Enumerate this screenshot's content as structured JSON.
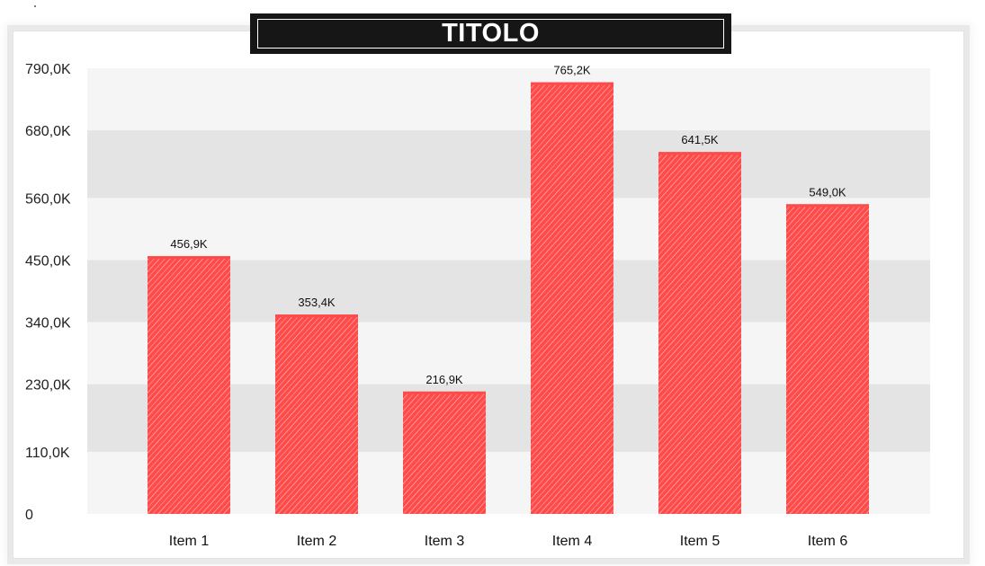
{
  "chart_data": {
    "type": "bar",
    "title": "TITOLO",
    "categories": [
      "Item 1",
      "Item 2",
      "Item 3",
      "Item 4",
      "Item 5",
      "Item 6"
    ],
    "values": [
      456900,
      353400,
      216900,
      765200,
      641500,
      549000
    ],
    "data_labels": [
      "456,9K",
      "353,4K",
      "216,9K",
      "765,2K",
      "641,5K",
      "549,0K"
    ],
    "y_ticks": [
      0,
      110000,
      230000,
      340000,
      450000,
      560000,
      680000,
      790000
    ],
    "y_tick_labels": [
      "0",
      "110,0K",
      "230,0K",
      "340,0K",
      "450,0K",
      "560,0K",
      "680,0K",
      "790,0K"
    ],
    "ylim": [
      0,
      790000
    ],
    "xlabel": "",
    "ylabel": "",
    "grid": "alternating horizontal bands",
    "legend": "none",
    "bar_style": "hand-drawn diagonal hatch",
    "colors": {
      "bar": "#ff4a4a",
      "band_light": "#f5f5f5",
      "band_dark": "#e4e4e4",
      "title_bg": "#161616",
      "title_text": "#ffffff"
    }
  }
}
